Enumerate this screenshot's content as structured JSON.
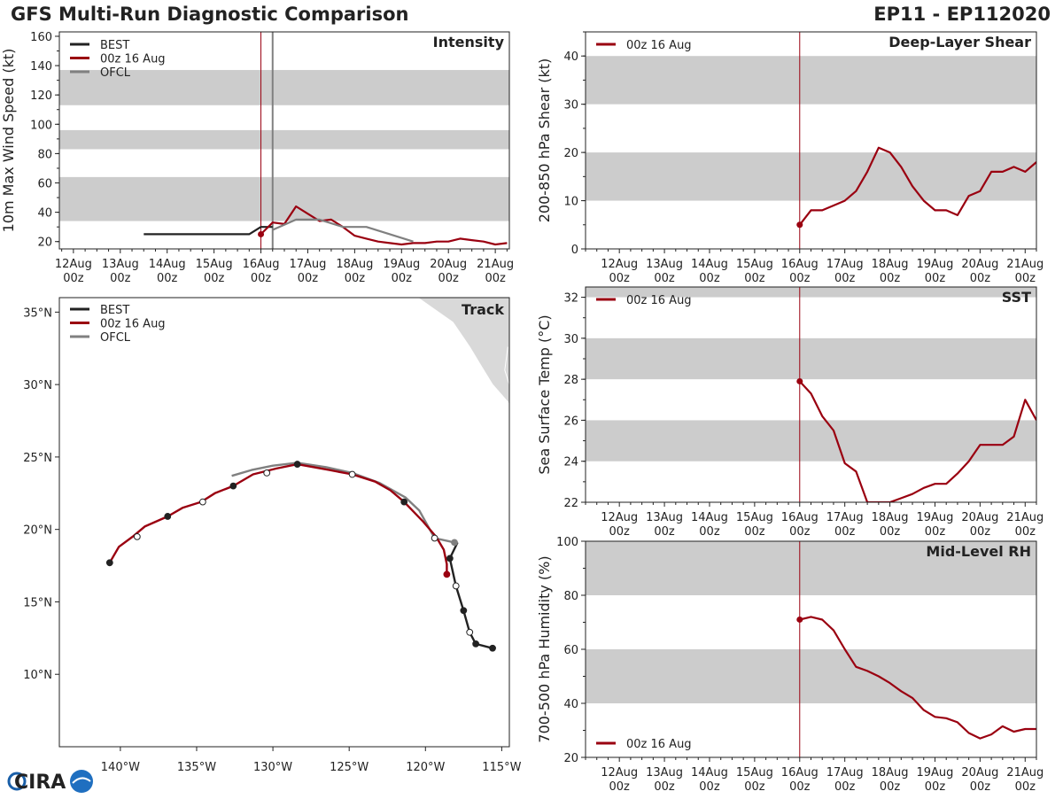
{
  "header": {
    "title": "GFS Multi-Run Diagnostic Comparison",
    "storm": "EP11 - EP112020"
  },
  "logo": {
    "text": "CIRA"
  },
  "colors": {
    "best": "#222222",
    "gfs": "#9a0010",
    "ofcl": "#808080",
    "band": "#cccccc",
    "land": "#d9d9d9"
  },
  "x_ticks": [
    {
      "l1": "12Aug",
      "l2": "00z"
    },
    {
      "l1": "13Aug",
      "l2": "00z"
    },
    {
      "l1": "14Aug",
      "l2": "00z"
    },
    {
      "l1": "15Aug",
      "l2": "00z"
    },
    {
      "l1": "16Aug",
      "l2": "00z"
    },
    {
      "l1": "17Aug",
      "l2": "00z"
    },
    {
      "l1": "18Aug",
      "l2": "00z"
    },
    {
      "l1": "19Aug",
      "l2": "00z"
    },
    {
      "l1": "20Aug",
      "l2": "00z"
    },
    {
      "l1": "21Aug",
      "l2": "00z"
    }
  ],
  "chart_data": [
    {
      "type": "line",
      "id": "intensity",
      "title": "Intensity",
      "ylabel": "10m Max Wind Speed (kt)",
      "xlim": [
        -4.3,
        5.3
      ],
      "ylim": [
        15,
        163
      ],
      "yticks": [
        20,
        40,
        60,
        80,
        100,
        120,
        140,
        160
      ],
      "bands": [
        [
          34,
          64
        ],
        [
          83,
          96
        ],
        [
          113,
          137
        ]
      ],
      "vlines": [
        {
          "x": 0,
          "color": "gfs"
        },
        {
          "x": 0.25,
          "color": "ofcl"
        }
      ],
      "legend": [
        {
          "name": "BEST",
          "color": "best"
        },
        {
          "name": "00z 16 Aug",
          "color": "gfs"
        },
        {
          "name": "OFCL",
          "color": "ofcl"
        }
      ],
      "series": [
        {
          "name": "BEST",
          "color": "best",
          "marker_first": false,
          "x": [
            -2.5,
            -2.25,
            -2.0,
            -1.75,
            -1.5,
            -1.25,
            -1.0,
            -0.75,
            -0.5,
            -0.25,
            0.0,
            0.25
          ],
          "y": [
            25,
            25,
            25,
            25,
            25,
            25,
            25,
            25,
            25,
            25,
            30,
            30
          ]
        },
        {
          "name": "00z 16 Aug",
          "color": "gfs",
          "marker_first": true,
          "x": [
            0.0,
            0.25,
            0.5,
            0.75,
            1.0,
            1.25,
            1.5,
            1.75,
            2.0,
            2.25,
            2.5,
            2.75,
            3.0,
            3.25,
            3.5,
            3.75,
            4.0,
            4.25,
            4.5,
            4.75,
            5.0,
            5.25
          ],
          "y": [
            25,
            33,
            32,
            44,
            39,
            34,
            35,
            30,
            24,
            22,
            20,
            19,
            18,
            19,
            19,
            20,
            20,
            22,
            21,
            20,
            18,
            19
          ]
        },
        {
          "name": "OFCL",
          "color": "ofcl",
          "marker_first": false,
          "x": [
            0.25,
            0.75,
            1.25,
            1.75,
            2.25,
            2.75,
            3.25
          ],
          "y": [
            28,
            35,
            35,
            30,
            30,
            25,
            20
          ]
        }
      ]
    },
    {
      "type": "line",
      "id": "shear",
      "title": "Deep-Layer Shear",
      "ylabel": "200-850 hPa Shear (kt)",
      "xlim": [
        -4.75,
        5.25
      ],
      "ylim": [
        0,
        45
      ],
      "yticks": [
        0,
        10,
        20,
        30,
        40
      ],
      "bands": [
        [
          10,
          20
        ],
        [
          30,
          40
        ]
      ],
      "vlines": [
        {
          "x": 0,
          "color": "gfs"
        }
      ],
      "legend": [
        {
          "name": "00z 16 Aug",
          "color": "gfs"
        }
      ],
      "series": [
        {
          "name": "00z 16 Aug",
          "color": "gfs",
          "marker_first": true,
          "x": [
            0.0,
            0.25,
            0.5,
            0.75,
            1.0,
            1.25,
            1.5,
            1.75,
            2.0,
            2.25,
            2.5,
            2.75,
            3.0,
            3.25,
            3.5,
            3.75,
            4.0,
            4.25,
            4.5,
            4.75,
            5.0,
            5.25
          ],
          "y": [
            5,
            8,
            8,
            9,
            10,
            12,
            16,
            21,
            20,
            17,
            13,
            10,
            8,
            8,
            7,
            11,
            12,
            16,
            16,
            17,
            16,
            18
          ]
        }
      ]
    },
    {
      "type": "line",
      "id": "sst",
      "title": "SST",
      "ylabel": "Sea Surface Temp (°C)",
      "xlim": [
        -4.75,
        5.25
      ],
      "ylim": [
        22,
        32.5
      ],
      "yticks": [
        22,
        24,
        26,
        28,
        30,
        32
      ],
      "bands": [
        [
          24,
          26
        ],
        [
          28,
          30
        ],
        [
          32,
          32.5
        ]
      ],
      "vlines": [
        {
          "x": 0,
          "color": "gfs"
        }
      ],
      "legend": [
        {
          "name": "00z 16 Aug",
          "color": "gfs"
        }
      ],
      "series": [
        {
          "name": "00z 16 Aug",
          "color": "gfs",
          "marker_first": true,
          "x": [
            0.0,
            0.25,
            0.5,
            0.75,
            1.0,
            1.25,
            1.5,
            1.75,
            2.0,
            2.25,
            2.5,
            2.75,
            3.0,
            3.25,
            3.5,
            3.75,
            4.0,
            4.25,
            4.5,
            4.75,
            5.0,
            5.25
          ],
          "y": [
            27.9,
            27.3,
            26.2,
            25.5,
            23.9,
            23.5,
            22.0,
            22.0,
            22.0,
            22.2,
            22.4,
            22.7,
            22.9,
            22.9,
            23.4,
            24.0,
            24.8,
            24.8,
            24.8,
            25.2,
            27.0,
            26.0
          ]
        }
      ]
    },
    {
      "type": "line",
      "id": "rh",
      "title": "Mid-Level RH",
      "ylabel": "700-500 hPa Humidity (%)",
      "xlim": [
        -4.75,
        5.25
      ],
      "ylim": [
        20,
        100
      ],
      "yticks": [
        20,
        40,
        60,
        80,
        100
      ],
      "bands": [
        [
          40,
          60
        ],
        [
          80,
          100
        ]
      ],
      "vlines": [
        {
          "x": 0,
          "color": "gfs"
        }
      ],
      "legend": [
        {
          "name": "00z 16 Aug",
          "color": "gfs"
        }
      ],
      "series": [
        {
          "name": "00z 16 Aug",
          "color": "gfs",
          "marker_first": true,
          "x": [
            0.0,
            0.25,
            0.5,
            0.75,
            1.0,
            1.25,
            1.5,
            1.75,
            2.0,
            2.25,
            2.5,
            2.75,
            3.0,
            3.25,
            3.5,
            3.75,
            4.0,
            4.25,
            4.5,
            4.75,
            5.0,
            5.25
          ],
          "y": [
            71,
            72,
            71,
            67,
            60,
            53.5,
            52,
            50,
            47.5,
            44.5,
            42,
            37.5,
            35,
            34.5,
            33,
            29,
            27,
            28.5,
            31.5,
            29.5,
            30.5,
            30.5
          ]
        }
      ]
    },
    {
      "type": "map",
      "id": "track",
      "title": "Track",
      "xlim": [
        -144,
        -114.5
      ],
      "ylim": [
        5,
        36
      ],
      "lon_ticks": [
        {
          "v": -140,
          "label": "140°W"
        },
        {
          "v": -135,
          "label": "135°W"
        },
        {
          "v": -130,
          "label": "130°W"
        },
        {
          "v": -125,
          "label": "125°W"
        },
        {
          "v": -120,
          "label": "120°W"
        },
        {
          "v": -115,
          "label": "115°W"
        }
      ],
      "lat_ticks": [
        {
          "v": 10,
          "label": "10°N"
        },
        {
          "v": 15,
          "label": "15°N"
        },
        {
          "v": 20,
          "label": "20°N"
        },
        {
          "v": 25,
          "label": "25°N"
        },
        {
          "v": 30,
          "label": "30°N"
        },
        {
          "v": 35,
          "label": "35°N"
        }
      ],
      "legend": [
        {
          "name": "BEST",
          "color": "best"
        },
        {
          "name": "00z 16 Aug",
          "color": "gfs"
        },
        {
          "name": "OFCL",
          "color": "ofcl"
        }
      ],
      "best": {
        "lon": [
          -115.6,
          -116.7,
          -117.1,
          -117.5,
          -118.0,
          -118.4,
          -118.4,
          -117.9
        ],
        "lat": [
          11.8,
          12.1,
          12.9,
          14.4,
          16.1,
          18.0,
          18.0,
          19.1
        ],
        "markers": [
          {
            "lon": -115.6,
            "lat": 11.8,
            "fill": "dark"
          },
          {
            "lon": -116.7,
            "lat": 12.1,
            "fill": "dark"
          },
          {
            "lon": -117.1,
            "lat": 12.9,
            "fill": "open"
          },
          {
            "lon": -117.5,
            "lat": 14.4,
            "fill": "dark"
          },
          {
            "lon": -118.0,
            "lat": 16.1,
            "fill": "open"
          },
          {
            "lon": -118.4,
            "lat": 18.0,
            "fill": "dark"
          }
        ]
      },
      "gfs": {
        "lon": [
          -118.6,
          -118.6,
          -118.8,
          -119.3,
          -120.2,
          -121.4,
          -122.3,
          -123.3,
          -124.8,
          -126.3,
          -128.4,
          -129.8,
          -131.3,
          -132.6,
          -133.8,
          -134.7,
          -135.9,
          -136.9,
          -138.4,
          -139.2,
          -140.1,
          -140.7
        ],
        "lat": [
          16.9,
          17.6,
          18.6,
          19.5,
          20.6,
          21.9,
          22.7,
          23.3,
          23.8,
          24.1,
          24.5,
          24.2,
          23.8,
          23.0,
          22.5,
          21.9,
          21.5,
          20.9,
          20.2,
          19.5,
          18.8,
          17.7
        ],
        "markers": [
          {
            "lon": -118.6,
            "lat": 16.9,
            "fill": "red"
          },
          {
            "lon": -121.4,
            "lat": 21.9,
            "fill": "dark"
          },
          {
            "lon": -124.8,
            "lat": 23.8,
            "fill": "open"
          },
          {
            "lon": -128.4,
            "lat": 24.5,
            "fill": "dark"
          },
          {
            "lon": -130.4,
            "lat": 23.9,
            "fill": "open"
          },
          {
            "lon": -132.6,
            "lat": 23.0,
            "fill": "dark"
          },
          {
            "lon": -134.6,
            "lat": 21.9,
            "fill": "open"
          },
          {
            "lon": -136.9,
            "lat": 20.9,
            "fill": "dark"
          },
          {
            "lon": -138.9,
            "lat": 19.5,
            "fill": "open"
          },
          {
            "lon": -140.7,
            "lat": 17.7,
            "fill": "dark"
          }
        ]
      },
      "ofcl": {
        "lon": [
          -118.1,
          -119.4,
          -120.4,
          -121.3,
          -123.0,
          -124.8,
          -126.5,
          -128.4,
          -130.0,
          -131.4,
          -132.7
        ],
        "lat": [
          19.1,
          19.4,
          21.3,
          22.2,
          23.2,
          23.9,
          24.3,
          24.6,
          24.4,
          24.1,
          23.7
        ],
        "markers": [
          {
            "lon": -118.1,
            "lat": 19.1,
            "fill": "gray"
          },
          {
            "lon": -119.4,
            "lat": 19.4,
            "fill": "open"
          }
        ]
      }
    }
  ]
}
